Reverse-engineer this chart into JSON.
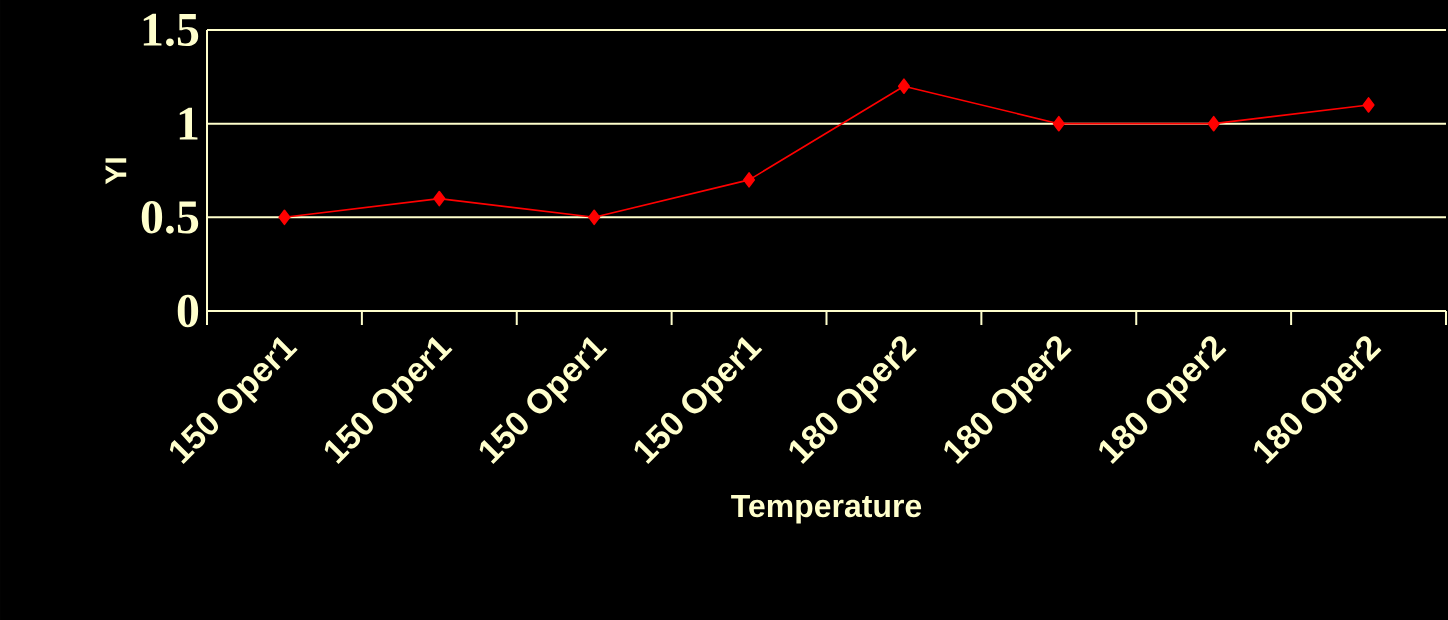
{
  "chart_data": {
    "type": "line",
    "xlabel": "Temperature",
    "ylabel": "YI",
    "categories": [
      "150 Oper1",
      "150 Oper1",
      "150 Oper1",
      "150 Oper1",
      "180 Oper2",
      "180 Oper2",
      "180 Oper2",
      "180 Oper2"
    ],
    "values": [
      0.5,
      0.6,
      0.5,
      0.7,
      1.2,
      1.0,
      1.0,
      1.1
    ],
    "color": "#ff0000",
    "marker": "diamond",
    "grid": "y",
    "ylim": [
      0,
      1.5
    ],
    "yticks": [
      0,
      0.5,
      1,
      1.5
    ]
  }
}
